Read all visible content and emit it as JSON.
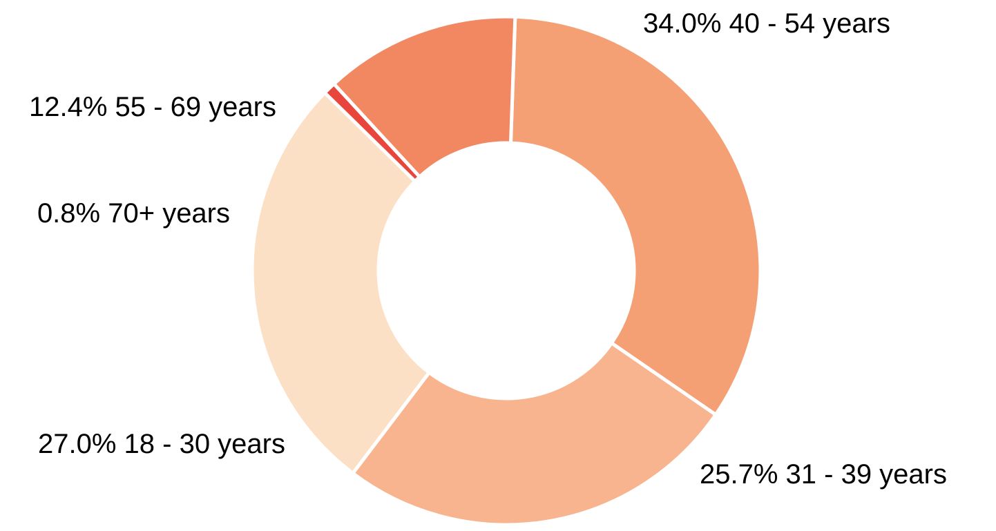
{
  "chart_data": {
    "type": "pie",
    "donut": true,
    "title": "",
    "slices": [
      {
        "label": "40 - 54 years",
        "value": 34.0,
        "display": "34.0%",
        "color": "#f4a074"
      },
      {
        "label": "31 - 39 years",
        "value": 25.7,
        "display": "25.7%",
        "color": "#f8b48f"
      },
      {
        "label": "18 - 30 years",
        "value": 27.0,
        "display": "27.0%",
        "color": "#fce0c5"
      },
      {
        "label": "70+ years",
        "value": 0.8,
        "display": "0.8%",
        "color": "#e8463d"
      },
      {
        "label": "55 - 69 years",
        "value": 12.4,
        "display": "12.4%",
        "color": "#f28861"
      }
    ],
    "start_angle_deg": 88,
    "direction": "clockwise",
    "separator_color": "#ffffff"
  }
}
